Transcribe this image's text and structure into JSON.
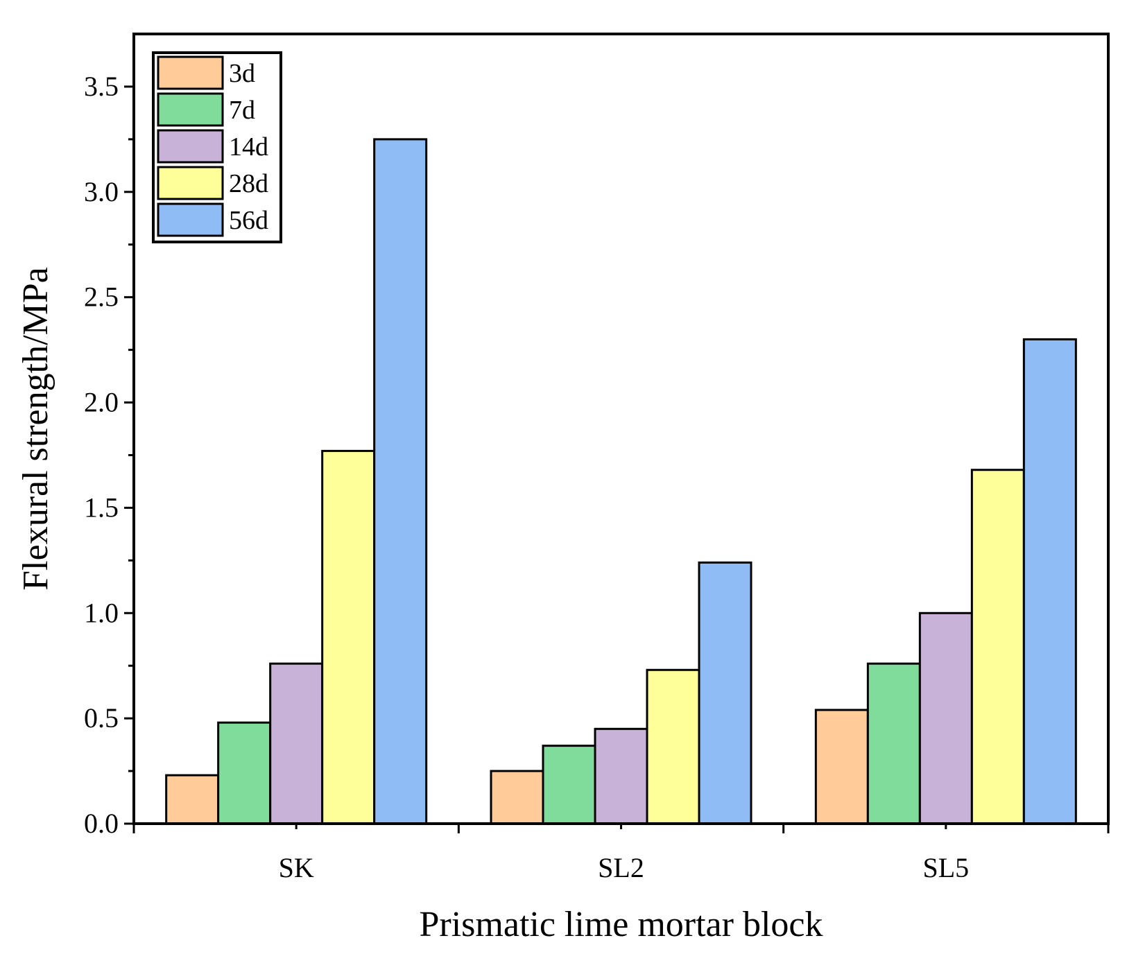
{
  "chart_data": {
    "type": "bar",
    "title": "",
    "xlabel": "Prismatic lime mortar block",
    "ylabel": "Flexural strength/MPa",
    "categories": [
      "SK",
      "SL2",
      "SL5"
    ],
    "ylim": [
      0,
      3.75
    ],
    "yticks": [
      "0.0",
      "0.5",
      "1.0",
      "1.5",
      "2.0",
      "2.5",
      "3.0",
      "3.5"
    ],
    "ytick_values": [
      0,
      0.5,
      1.0,
      1.5,
      2.0,
      2.5,
      3.0,
      3.5
    ],
    "legend_position": "top-left",
    "series": [
      {
        "name": "3d",
        "color": "#FFCC99",
        "values": [
          0.23,
          0.25,
          0.54
        ]
      },
      {
        "name": "7d",
        "color": "#80DC9B",
        "values": [
          0.48,
          0.37,
          0.76
        ]
      },
      {
        "name": "14d",
        "color": "#C8B2D8",
        "values": [
          0.76,
          0.45,
          1.0
        ]
      },
      {
        "name": "28d",
        "color": "#FFFF99",
        "values": [
          1.77,
          0.73,
          1.68
        ]
      },
      {
        "name": "56d",
        "color": "#8FBCF5",
        "values": [
          3.25,
          1.24,
          2.3
        ]
      }
    ]
  }
}
